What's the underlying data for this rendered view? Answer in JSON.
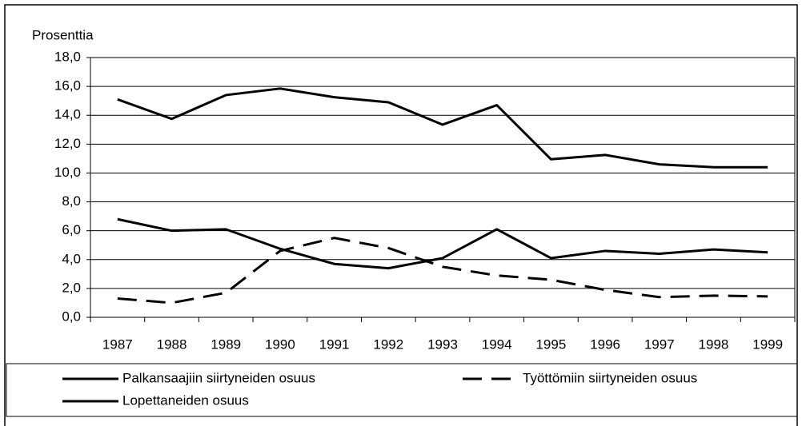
{
  "chart_data": {
    "type": "line",
    "y_label": "Prosenttia",
    "categories": [
      "1987",
      "1988",
      "1989",
      "1990",
      "1991",
      "1992",
      "1993",
      "1994",
      "1995",
      "1996",
      "1997",
      "1998",
      "1999"
    ],
    "series": [
      {
        "name": "Palkansaajiin siirtyneiden osuus",
        "color": "#000000",
        "dashed": false,
        "values": [
          6.8,
          6.0,
          6.1,
          4.75,
          3.7,
          3.4,
          4.1,
          6.1,
          4.1,
          4.6,
          4.4,
          4.7,
          4.5
        ]
      },
      {
        "name": "Työttömiin siirtyneiden osuus",
        "color": "#000000",
        "dashed": true,
        "values": [
          1.3,
          1.0,
          1.7,
          4.6,
          5.5,
          4.8,
          3.5,
          2.9,
          2.6,
          1.9,
          1.4,
          1.5,
          1.45
        ]
      },
      {
        "name": "Lopettaneiden osuus",
        "color": "#000000",
        "dashed": false,
        "values": [
          15.1,
          13.75,
          15.4,
          15.85,
          15.25,
          14.9,
          13.35,
          14.7,
          10.95,
          11.25,
          10.6,
          10.4,
          10.4
        ]
      }
    ],
    "ylim": [
      0,
      18
    ],
    "yticks": [
      {
        "value": 0,
        "label": "0,0"
      },
      {
        "value": 2,
        "label": "2,0"
      },
      {
        "value": 4,
        "label": "4,0"
      },
      {
        "value": 6,
        "label": "6,0"
      },
      {
        "value": 8,
        "label": "8,0"
      },
      {
        "value": 10,
        "label": "10,0"
      },
      {
        "value": 12,
        "label": "12,0"
      },
      {
        "value": 14,
        "label": "14,0"
      },
      {
        "value": 16,
        "label": "16,0"
      },
      {
        "value": 18,
        "label": "18,0"
      }
    ],
    "grid": true,
    "legend": "bottom"
  }
}
